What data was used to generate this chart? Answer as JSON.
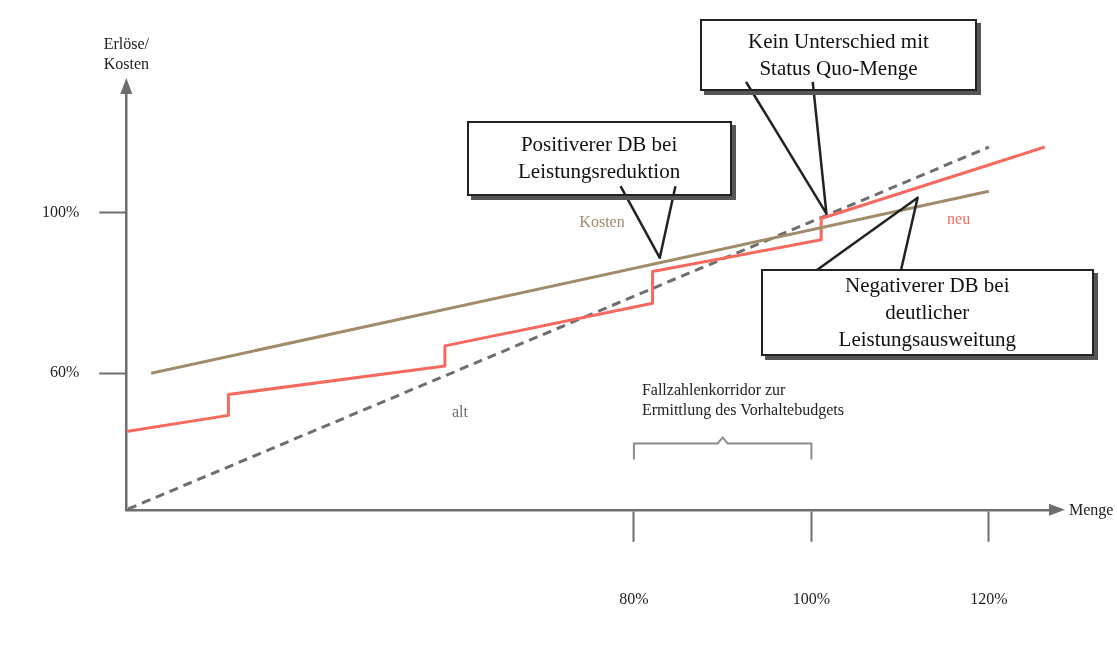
{
  "chart_data": {
    "type": "line",
    "xlabel": "Menge",
    "ylabel": "Erlöse/\nKosten",
    "xlim": [
      22.8,
      127
    ],
    "ylim": [
      26,
      130
    ],
    "xticks": [
      {
        "value": 80,
        "label": "80%"
      },
      {
        "value": 100,
        "label": "100%"
      },
      {
        "value": 120,
        "label": "120%"
      }
    ],
    "yticks": [
      {
        "value": 60,
        "label": "60%"
      },
      {
        "value": 100,
        "label": "100%"
      }
    ],
    "marker": "none",
    "series": [
      {
        "name": "Kosten",
        "color": "#a08c6a",
        "line_style": "solid",
        "x": [
          25.6,
          120
        ],
        "values": [
          60,
          105.3
        ]
      },
      {
        "name": "neu",
        "color": "#f7695e",
        "line_style": "solid",
        "x": [
          22.8,
          34.3,
          34.3,
          58.7,
          58.7,
          82.1,
          82.1,
          101.1,
          101.1,
          126.3
        ],
        "values": [
          45.5,
          49.5,
          54.7,
          61.8,
          66.8,
          77.4,
          85.3,
          93.2,
          98.5,
          116.3
        ]
      },
      {
        "name": "alt",
        "color": "#6e6e6e",
        "line_style": "dashed",
        "x": [
          23,
          120
        ],
        "values": [
          26.2,
          116.3
        ]
      }
    ],
    "annotations": [
      "Positiverer DB bei\nLeistungsreduktion",
      "Kein Unterschied mit\nStatus Quo-Menge",
      "Negativerer DB bei\ndeutlicher\nLeistungsausweitung",
      "Fallzahlenkorridor zur\nErmittlung des Vorhaltebudgets"
    ]
  }
}
